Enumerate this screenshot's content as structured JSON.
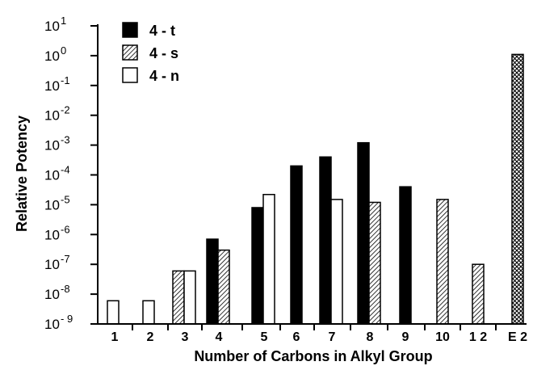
{
  "chart_data": {
    "type": "bar",
    "y_scale": "log",
    "ylim": [
      1e-09,
      10
    ],
    "grid": false,
    "legend_position": "top-left",
    "ylabel": "Relative Potency",
    "xlabel": "Number of Carbons in Alkyl Group",
    "categories": [
      "1",
      "2",
      "3",
      "4",
      "5",
      "6",
      "7",
      "8",
      "9",
      "10",
      "1 2",
      "E 2"
    ],
    "y_ticks": [
      {
        "base": "10",
        "exp": "1"
      },
      {
        "base": "10",
        "exp": "0"
      },
      {
        "base": "10",
        "exp": "-1"
      },
      {
        "base": "10",
        "exp": "-2"
      },
      {
        "base": "10",
        "exp": "-3"
      },
      {
        "base": "10",
        "exp": "-4"
      },
      {
        "base": "10",
        "exp": "-5"
      },
      {
        "base": "10",
        "exp": "-6"
      },
      {
        "base": "10",
        "exp": "-7"
      },
      {
        "base": "10",
        "exp": "-8"
      },
      {
        "base": "10",
        "exp": "- 9"
      }
    ],
    "series": [
      {
        "name": "4 - t",
        "fill": "solid",
        "color": "#000000",
        "values": [
          null,
          null,
          null,
          7e-07,
          8e-06,
          0.0002,
          0.0004,
          0.0012,
          4e-05,
          null,
          null,
          null
        ]
      },
      {
        "name": "4 - s",
        "fill": "hatch",
        "color": "#000000",
        "values": [
          null,
          null,
          6e-08,
          3e-07,
          null,
          null,
          null,
          1.2e-05,
          null,
          1.5e-05,
          1e-07,
          null
        ]
      },
      {
        "name": "4 - n",
        "fill": "open",
        "color": "#000000",
        "values": [
          6e-09,
          6e-09,
          6e-08,
          null,
          2.2e-05,
          null,
          1.5e-05,
          null,
          null,
          null,
          null,
          null
        ]
      },
      {
        "name": "",
        "fill": "crosshatch",
        "color": "#000000",
        "values": [
          null,
          null,
          null,
          null,
          null,
          null,
          null,
          null,
          null,
          null,
          null,
          1.1
        ]
      }
    ]
  }
}
